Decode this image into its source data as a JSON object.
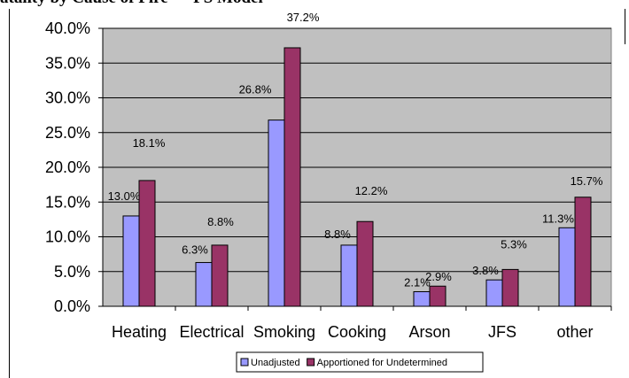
{
  "chart_data": {
    "type": "bar",
    "title": "atality by Cause of Fire — FS Model",
    "categories": [
      "Heating",
      "Electrical",
      "Smoking",
      "Cooking",
      "Arson",
      "JFS",
      "other"
    ],
    "series": [
      {
        "name": "Unadjusted",
        "color": "#9999ff",
        "values": [
          13.0,
          6.3,
          26.8,
          8.8,
          2.1,
          3.8,
          11.3
        ],
        "labels": [
          "13.0%",
          "6.3%",
          "26.8%",
          "8.8%",
          "2.1%",
          "3.8%",
          "11.3%"
        ]
      },
      {
        "name": "Apportioned for Undetermined",
        "color": "#993366",
        "values": [
          18.1,
          8.8,
          37.2,
          12.2,
          2.9,
          5.3,
          15.7
        ],
        "labels": [
          "18.1%",
          "8.8%",
          "37.2%",
          "12.2%",
          "2.9%",
          "5.3%",
          "15.7%"
        ]
      }
    ],
    "yticks": [
      "0.0%",
      "5.0%",
      "10.0%",
      "15.0%",
      "20.0%",
      "25.0%",
      "30.0%",
      "35.0%",
      "40.0%"
    ],
    "ylim": [
      0,
      40
    ],
    "grid": true,
    "plot_background": "#c0c0c0",
    "legend_position": "bottom"
  }
}
